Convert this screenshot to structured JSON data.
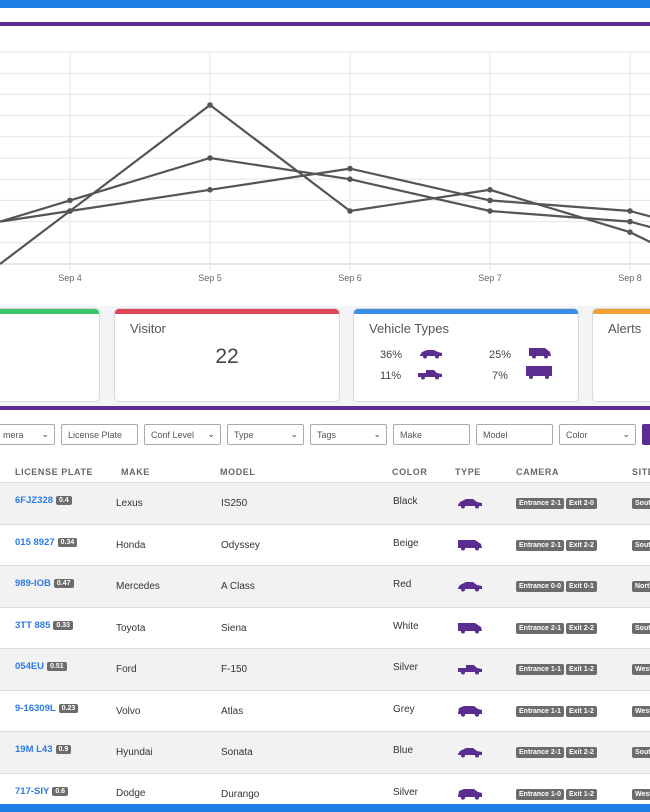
{
  "chart_data": {
    "type": "line",
    "categories": [
      "Sep 4",
      "Sep 5",
      "Sep 6",
      "Sep 7",
      "Sep 8"
    ],
    "series": [
      {
        "values": [
          5,
          15,
          5,
          7,
          3
        ]
      },
      {
        "values": [
          6,
          10,
          8,
          5,
          4
        ]
      },
      {
        "values": [
          5,
          7,
          9,
          6,
          5
        ]
      }
    ],
    "grid": true,
    "legend": "none"
  },
  "stats": {
    "visitor": {
      "title": "Visitor",
      "value": "22",
      "accent": "#e0465a"
    },
    "vehicle_types": {
      "title": "Vehicle Types",
      "accent": "#3a8ee6",
      "items": [
        {
          "pct": "36%",
          "icon": "sedan-icon"
        },
        {
          "pct": "25%",
          "icon": "van-icon"
        },
        {
          "pct": "11%",
          "icon": "pickup-icon"
        },
        {
          "pct": "7%",
          "icon": "truck-icon"
        }
      ]
    },
    "alerts": {
      "title": "Alerts",
      "accent": "#f0a030"
    },
    "left_card_accent": "#3cc46a"
  },
  "filters": {
    "camera": "mera",
    "license_plate": "License Plate",
    "conf_level": "Conf Level",
    "type": "Type",
    "tags": "Tags",
    "make": "Make",
    "model": "Model",
    "color": "Color"
  },
  "table": {
    "headers": {
      "license_plate": "LICENSE PLATE",
      "make": "MAKE",
      "model": "MODEL",
      "color": "COLOR",
      "type": "TYPE",
      "camera": "CAMERA",
      "site": "SITE"
    },
    "rows": [
      {
        "plate": "6FJZ328",
        "conf": "0.4",
        "make": "Lexus",
        "model": "IS250",
        "color": "Black",
        "type_icon": "sedan-icon",
        "cam1": "Entrance 2-1",
        "cam2": "Exit 2-0",
        "site": "South"
      },
      {
        "plate": "015 8927",
        "conf": "0.34",
        "make": "Honda",
        "model": "Odyssey",
        "color": "Beige",
        "type_icon": "van-icon",
        "cam1": "Entrance 2-1",
        "cam2": "Exit 2-2",
        "site": "South"
      },
      {
        "plate": "989-IOB",
        "conf": "0.47",
        "make": "Mercedes",
        "model": "A Class",
        "color": "Red",
        "type_icon": "sedan-icon",
        "cam1": "Entrance 0-0",
        "cam2": "Exit 0-1",
        "site": "North"
      },
      {
        "plate": "3TT 885",
        "conf": "0.33",
        "make": "Toyota",
        "model": "Siena",
        "color": "White",
        "type_icon": "van-icon",
        "cam1": "Entrance 2-1",
        "cam2": "Exit 2-2",
        "site": "South"
      },
      {
        "plate": "054EU",
        "conf": "0.51",
        "make": "Ford",
        "model": "F-150",
        "color": "Silver",
        "type_icon": "pickup-icon",
        "cam1": "Entrance 1-1",
        "cam2": "Exit 1-2",
        "site": "West"
      },
      {
        "plate": "9-16309L",
        "conf": "0.23",
        "make": "Volvo",
        "model": "Atlas",
        "color": "Grey",
        "type_icon": "suv-icon",
        "cam1": "Entrance 1-1",
        "cam2": "Exit 1-2",
        "site": "West"
      },
      {
        "plate": "19M L43",
        "conf": "0.9",
        "make": "Hyundai",
        "model": "Sonata",
        "color": "Blue",
        "type_icon": "sedan-icon",
        "cam1": "Entrance 2-1",
        "cam2": "Exit 2-2",
        "site": "South"
      },
      {
        "plate": "717-SIY",
        "conf": "0.6",
        "make": "Dodge",
        "model": "Durango",
        "color": "Silver",
        "type_icon": "suv-icon",
        "cam1": "Entrance 1-0",
        "cam2": "Exit 1-2",
        "site": "West"
      }
    ]
  },
  "colors": {
    "brand_purple": "#5b2d90",
    "plate_blue": "#2c7be5",
    "frame_blue": "#1e7fe6"
  }
}
